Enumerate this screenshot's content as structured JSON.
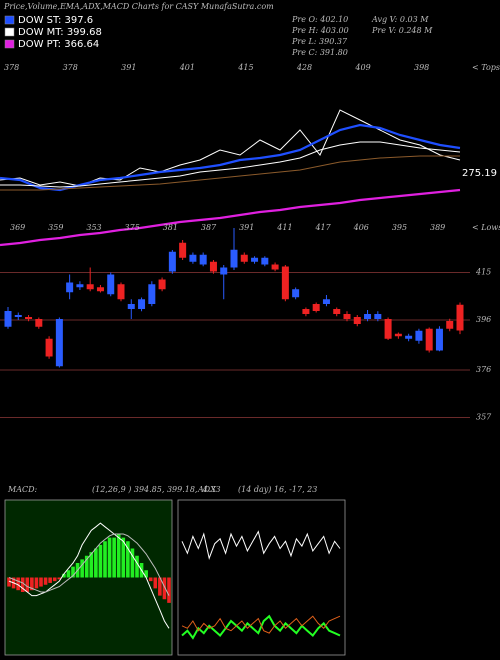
{
  "title": "Price,Volume,EMA,ADX,MACD Charts for CASY MunafaSutra.com",
  "info": [
    "Pre  O: 402.10",
    "Pre  H: 403.00",
    "Pre  L: 390.37",
    "Pre  C: 391.80",
    "Avg V: 0.03 M",
    "Pre  V: 0.248 M"
  ],
  "chart_data": [
    {
      "type": "line",
      "annotation": "275.19",
      "ylim": [
        0,
        200
      ],
      "legend": "top-left",
      "series": [
        {
          "color": "#ffffff",
          "values": [
            70,
            72,
            65,
            68,
            64,
            72,
            70,
            82,
            78,
            85,
            90,
            100,
            95,
            110,
            100,
            120,
            95,
            140,
            130,
            120,
            110,
            105,
            95,
            90
          ]
        },
        {
          "name": "DOW ST: 397.6",
          "color": "#1f4fff",
          "values": [
            72,
            70,
            62,
            60,
            65,
            70,
            72,
            75,
            78,
            80,
            82,
            85,
            90,
            92,
            95,
            100,
            110,
            120,
            125,
            122,
            115,
            110,
            105,
            102
          ]
        },
        {
          "name": "DOW MT: 399.68",
          "color": "#ffffff",
          "values": [
            65,
            65,
            64,
            63,
            64,
            66,
            68,
            70,
            72,
            74,
            78,
            80,
            82,
            85,
            88,
            92,
            100,
            105,
            108,
            108,
            105,
            102,
            100,
            98
          ]
        },
        {
          "color": "#8b5a2b",
          "values": [
            60,
            60,
            60,
            61,
            62,
            63,
            64,
            65,
            66,
            68,
            70,
            72,
            74,
            76,
            78,
            80,
            84,
            88,
            90,
            92,
            93,
            94,
            94,
            94
          ]
        },
        {
          "name": "DOW PT: 366.64",
          "color": "#e020e0",
          "values": [
            5,
            7,
            10,
            12,
            15,
            17,
            20,
            22,
            25,
            28,
            30,
            32,
            35,
            38,
            40,
            43,
            45,
            47,
            50,
            52,
            54,
            56,
            58,
            60
          ]
        }
      ]
    },
    {
      "type": "candlestick",
      "up_color": "#2a5cff",
      "down_color": "#ee2222",
      "ylim": [
        352,
        434
      ],
      "yticks": [
        415,
        396,
        376,
        357
      ],
      "tops_label": "< Tops",
      "lows_label": "< Lows",
      "top_labels": [
        378,
        378,
        391,
        401,
        415,
        428,
        409,
        398
      ],
      "low_labels": [
        369,
        359,
        353,
        375,
        381,
        387,
        391,
        411,
        417,
        406,
        395,
        389
      ],
      "open": [
        393.3,
        397.2,
        397.2,
        396.4,
        388.5,
        377.5,
        407.1,
        409.1,
        410.3,
        409.1,
        406.3,
        410.3,
        400.4,
        400.4,
        402.4,
        412.2,
        415.4,
        426.9,
        419.3,
        418.2,
        419.3,
        414.2,
        417.0,
        422.1,
        419.3,
        418.2,
        418.2,
        417.4,
        405.1,
        400.4,
        402.4,
        402.4,
        400.4,
        398.4,
        397.2,
        396.4,
        396.4,
        396.4,
        390.5,
        388.5,
        387.7,
        392.5,
        383.8,
        395.6,
        402.1
      ],
      "high": [
        401.2,
        399,
        398,
        397,
        389.5,
        397,
        414.2,
        411.5,
        417.0,
        410,
        415,
        411,
        404.3,
        405,
        411.5,
        413,
        424,
        428,
        423,
        423,
        420,
        418,
        432.8,
        423,
        421.5,
        421.5,
        419,
        418,
        409,
        401,
        403,
        406,
        401,
        399.5,
        398,
        400,
        399.5,
        397,
        391,
        390.5,
        392.5,
        393,
        393.5,
        396.5,
        403.0
      ],
      "low": [
        392.5,
        396,
        395.5,
        392.5,
        380.5,
        377,
        404.3,
        408,
        407.5,
        407,
        405.5,
        403.5,
        396.4,
        399.5,
        401.5,
        407.5,
        414.5,
        420,
        418.5,
        417.5,
        414.5,
        404.3,
        416,
        418.5,
        418.5,
        417.5,
        415.5,
        403.5,
        404.3,
        397.5,
        399,
        401.5,
        397.5,
        395.5,
        393.5,
        395.5,
        395.5,
        388,
        388.5,
        387.5,
        386.5,
        383,
        383.5,
        391.5,
        390.37
      ],
      "close": [
        399.6,
        398.0,
        396.4,
        393.3,
        381.4,
        396.4,
        411.0,
        410.3,
        408.3,
        407.5,
        414.2,
        404.3,
        402.4,
        404.3,
        410.3,
        408.3,
        423.3,
        420.9,
        422.1,
        422.1,
        415.4,
        417.0,
        424.1,
        419.3,
        420.9,
        420.9,
        416.2,
        404.3,
        408.3,
        398.4,
        399.6,
        404.3,
        398.4,
        396.4,
        394.4,
        398.4,
        398.4,
        388.5,
        389.5,
        389.7,
        391.7,
        383.8,
        392.5,
        392.5,
        391.8
      ]
    },
    {
      "type": "macd",
      "label": "MACD:",
      "params": "(12,26,9 ) 394.85, 399.18, -4.33",
      "up_color": "#22ee22",
      "down_color": "#ee2222",
      "ylim": [
        -40,
        40
      ],
      "histogram": [
        -5,
        -6,
        -7,
        -8,
        -8,
        -7,
        -6,
        -5,
        -4,
        -3,
        -2,
        -1,
        2,
        4,
        6,
        8,
        10,
        12,
        14,
        16,
        18,
        20,
        22,
        22,
        24,
        22,
        20,
        16,
        12,
        8,
        4,
        -2,
        -6,
        -10,
        -12,
        -14
      ],
      "series": [
        {
          "color": "#ffffff",
          "values": [
            -2,
            -3,
            -4,
            -6,
            -8,
            -10,
            -10,
            -9,
            -8,
            -6,
            -4,
            -2,
            2,
            5,
            8,
            12,
            18,
            22,
            26,
            28,
            30,
            28,
            26,
            24,
            22,
            20,
            16,
            12,
            8,
            4,
            0,
            -6,
            -12,
            -18,
            -24,
            -28
          ]
        },
        {
          "color": "#bbbbbb",
          "values": [
            0,
            -1,
            -2,
            -3,
            -5,
            -6,
            -7,
            -8,
            -8,
            -7,
            -6,
            -5,
            -3,
            -1,
            1,
            4,
            7,
            10,
            13,
            16,
            19,
            21,
            23,
            24,
            24,
            24,
            23,
            21,
            19,
            16,
            13,
            9,
            5,
            0,
            -5,
            -10
          ]
        }
      ]
    },
    {
      "type": "adx",
      "label": "ADX",
      "params": "(14 day) 16, -17, 23",
      "ylim": [
        0,
        60
      ],
      "series": [
        {
          "color": "#ffffff",
          "values": [
            45,
            40,
            47,
            42,
            48,
            38,
            44,
            46,
            40,
            48,
            43,
            47,
            41,
            45,
            49,
            40,
            44,
            47,
            42,
            45,
            39,
            46,
            43,
            48,
            41,
            44,
            47,
            40,
            45,
            42
          ]
        },
        {
          "color": "#22ff22",
          "values": [
            6,
            8,
            5,
            9,
            7,
            10,
            8,
            6,
            9,
            12,
            10,
            8,
            11,
            9,
            7,
            12,
            14,
            10,
            8,
            11,
            9,
            7,
            10,
            8,
            6,
            9,
            11,
            8,
            7,
            6
          ]
        },
        {
          "color": "#e0601a",
          "values": [
            10,
            9,
            12,
            8,
            11,
            9,
            10,
            13,
            9,
            8,
            10,
            12,
            9,
            11,
            13,
            8,
            7,
            10,
            12,
            9,
            11,
            13,
            10,
            12,
            14,
            11,
            9,
            12,
            13,
            14
          ]
        }
      ]
    }
  ]
}
